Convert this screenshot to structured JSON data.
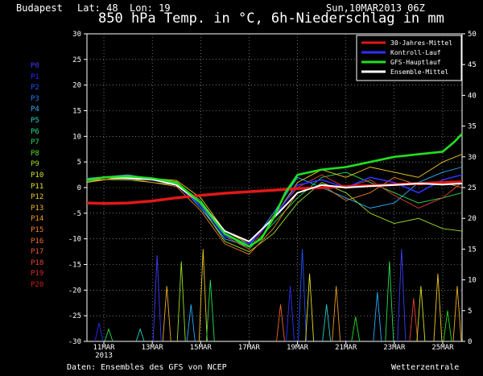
{
  "header": {
    "location": "Budapest",
    "latlon": "Lat: 48  Lon: 19",
    "title": "850 hPa Temp. in °C, 6h-Niederschlag in mm",
    "run": "Sun,10MAR2013 06Z"
  },
  "footer": {
    "source": "Daten: Ensembles des GFS von NCEP",
    "brand": "Wetterzentrale"
  },
  "members": [
    {
      "label": "P0",
      "color": "#3c3cff"
    },
    {
      "label": "P1",
      "color": "#2a2aff"
    },
    {
      "label": "P2",
      "color": "#2050ff"
    },
    {
      "label": "P3",
      "color": "#1e7dff"
    },
    {
      "label": "P4",
      "color": "#26b0ff"
    },
    {
      "label": "P5",
      "color": "#21d0c8"
    },
    {
      "label": "P6",
      "color": "#22e08c"
    },
    {
      "label": "P7",
      "color": "#24e050"
    },
    {
      "label": "P8",
      "color": "#5ae024"
    },
    {
      "label": "P9",
      "color": "#9ae024"
    },
    {
      "label": "P10",
      "color": "#d2e024"
    },
    {
      "label": "P11",
      "color": "#e6e020"
    },
    {
      "label": "P12",
      "color": "#f0c820"
    },
    {
      "label": "P13",
      "color": "#f0b020"
    },
    {
      "label": "P14",
      "color": "#f09a22"
    },
    {
      "label": "P15",
      "color": "#f08224"
    },
    {
      "label": "P16",
      "color": "#f06a28"
    },
    {
      "label": "P17",
      "color": "#ec5830"
    },
    {
      "label": "P18",
      "color": "#e84038"
    },
    {
      "label": "P19",
      "color": "#e02828"
    },
    {
      "label": "P20",
      "color": "#d01c1c"
    }
  ],
  "chart_data": {
    "type": "line",
    "title": "850 hPa Temp. in °C, 6h-Niederschlag in mm",
    "x_ticks": [
      {
        "day": 1,
        "label": "11MAR",
        "sub": "2013"
      },
      {
        "day": 3,
        "label": "13MAR"
      },
      {
        "day": 5,
        "label": "15MAR"
      },
      {
        "day": 7,
        "label": "17MAR"
      },
      {
        "day": 9,
        "label": "19MAR"
      },
      {
        "day": 11,
        "label": "21MAR"
      },
      {
        "day": 13,
        "label": "23MAR"
      },
      {
        "day": 15,
        "label": "25MAR"
      }
    ],
    "x_range": [
      0.3,
      15.8
    ],
    "y_left": {
      "label": "°C",
      "range": [
        -30,
        30
      ],
      "ticks": [
        30,
        25,
        20,
        15,
        10,
        5,
        0,
        -5,
        -10,
        -15,
        -20,
        -25,
        -30
      ]
    },
    "y_right": {
      "label": "mm",
      "range": [
        0,
        50
      ],
      "ticks": [
        50,
        45,
        40,
        35,
        30,
        25,
        20,
        15,
        10,
        5,
        0
      ]
    },
    "legend": [
      {
        "name": "30-Jahres-Mittel",
        "color": "#e01818"
      },
      {
        "name": "Kontroll-Lauf",
        "color": "#3030ff"
      },
      {
        "name": "GFS-Hauptlauf",
        "color": "#20e020"
      },
      {
        "name": "Ensemble-Mittel",
        "color": "#ffffff"
      }
    ],
    "series": [
      {
        "name": "30-Jahres-Mittel",
        "color": "#e01818",
        "x": [
          0.3,
          1,
          2,
          3,
          4,
          5,
          6,
          7,
          8,
          9,
          10,
          11,
          12,
          13,
          14,
          15,
          15.8
        ],
        "y": [
          -3.0,
          -3.1,
          -3.0,
          -2.6,
          -2.0,
          -1.5,
          -1.1,
          -0.8,
          -0.5,
          -0.2,
          0.0,
          0.2,
          0.4,
          0.6,
          0.8,
          1.0,
          1.1
        ]
      },
      {
        "name": "GFS-Hauptlauf",
        "color": "#20e020",
        "x": [
          0.3,
          1,
          2,
          3,
          4,
          5,
          6,
          7,
          7.5,
          8,
          8.5,
          9,
          10,
          11,
          12,
          13,
          14,
          15,
          15.5,
          15.8
        ],
        "y": [
          1.5,
          2.0,
          2.2,
          1.8,
          1.0,
          -3.0,
          -9.0,
          -11.5,
          -10.0,
          -6.0,
          -1.0,
          2.5,
          3.5,
          4.0,
          5.0,
          6.0,
          6.5,
          7.0,
          9.0,
          10.5
        ]
      },
      {
        "name": "Kontroll-Lauf",
        "color": "#3030ff",
        "x": [
          0.3,
          1,
          2,
          3,
          4,
          5,
          6,
          7,
          8,
          9,
          10,
          11,
          12,
          13,
          14,
          15,
          15.8
        ],
        "y": [
          1.6,
          2.0,
          1.8,
          1.5,
          0.5,
          -3.5,
          -9.5,
          -11.0,
          -6.0,
          0.5,
          1.5,
          0.0,
          2.0,
          1.0,
          -1.0,
          1.5,
          2.5
        ]
      },
      {
        "name": "Ensemble-Mittel",
        "color": "#ffffff",
        "x": [
          0.3,
          1,
          2,
          3,
          4,
          5,
          6,
          7,
          8,
          9,
          10,
          11,
          12,
          13,
          14,
          15,
          15.8
        ],
        "y": [
          1.5,
          2.0,
          1.8,
          1.6,
          0.5,
          -3.0,
          -8.5,
          -10.5,
          -6.0,
          -1.0,
          0.5,
          0.0,
          0.3,
          0.5,
          0.8,
          0.6,
          0.8
        ]
      },
      {
        "name": "P4",
        "color": "#26b0ff",
        "x": [
          0.3,
          2,
          4,
          5,
          6,
          7,
          8,
          9,
          10,
          11,
          12,
          13,
          14,
          15,
          15.8
        ],
        "y": [
          1.8,
          2.5,
          1.0,
          -4.0,
          -10.0,
          -11.5,
          -5.0,
          2.0,
          0.0,
          -2.0,
          -4.0,
          -3.0,
          1.0,
          3.0,
          4.0
        ]
      },
      {
        "name": "P7",
        "color": "#24e050",
        "x": [
          0.3,
          2,
          4,
          5,
          6,
          7,
          8,
          9,
          10,
          11,
          12,
          13,
          14,
          15,
          15.8
        ],
        "y": [
          1.2,
          2.0,
          0.8,
          -2.5,
          -9.0,
          -12.0,
          -7.0,
          -2.0,
          2.0,
          3.0,
          1.0,
          -1.0,
          -3.0,
          -2.0,
          -1.0
        ]
      },
      {
        "name": "P9",
        "color": "#9ae024",
        "x": [
          0.3,
          2,
          4,
          5,
          6,
          7,
          8,
          9,
          10,
          11,
          12,
          13,
          14,
          15,
          15.8
        ],
        "y": [
          1.6,
          1.5,
          0.5,
          -3.5,
          -10.5,
          -12.5,
          -9.0,
          -3.0,
          1.0,
          -1.0,
          -5.0,
          -7.0,
          -6.0,
          -8.0,
          -8.5
        ]
      },
      {
        "name": "P12",
        "color": "#f0c820",
        "x": [
          0.3,
          2,
          4,
          5,
          6,
          7,
          8,
          9,
          10,
          11,
          12,
          13,
          14,
          15,
          15.8
        ],
        "y": [
          1.0,
          2.2,
          1.4,
          -2.0,
          -8.5,
          -11.0,
          -6.0,
          1.0,
          3.5,
          2.0,
          4.0,
          3.0,
          2.0,
          5.0,
          6.5
        ]
      },
      {
        "name": "P15",
        "color": "#f08224",
        "x": [
          0.3,
          2,
          4,
          5,
          6,
          7,
          8,
          9,
          10,
          11,
          12,
          13,
          14,
          15,
          15.8
        ],
        "y": [
          1.4,
          1.8,
          0.2,
          -4.5,
          -11.0,
          -13.0,
          -8.0,
          -1.0,
          0.5,
          -2.5,
          -1.0,
          2.0,
          0.5,
          1.0,
          0.0
        ]
      },
      {
        "name": "P18",
        "color": "#e84038",
        "x": [
          0.3,
          2,
          4,
          5,
          6,
          7,
          8,
          9,
          10,
          11,
          12,
          13,
          14,
          15,
          15.8
        ],
        "y": [
          1.7,
          2.4,
          1.2,
          -3.0,
          -9.5,
          -12.0,
          -5.5,
          0.0,
          2.5,
          0.0,
          1.5,
          -1.5,
          -4.0,
          -2.0,
          1.0
        ]
      }
    ],
    "precip": {
      "x": [
        0.8,
        1.2,
        2.5,
        3.2,
        3.6,
        4.2,
        4.6,
        5.1,
        5.4,
        8.3,
        8.7,
        9.2,
        9.5,
        10.2,
        10.6,
        11.4,
        12.3,
        12.8,
        13.3,
        13.8,
        14.1,
        14.8,
        15.2,
        15.6
      ],
      "y": [
        3,
        2,
        2,
        14,
        9,
        13,
        6,
        15,
        10,
        6,
        9,
        15,
        11,
        6,
        9,
        4,
        8,
        13,
        15,
        7,
        9,
        11,
        5,
        9
      ],
      "colors": [
        "#2a2aff",
        "#24e050",
        "#21d0c8",
        "#3c3cff",
        "#f0b020",
        "#9ae024",
        "#26b0ff",
        "#f0c820",
        "#24e050",
        "#f06a28",
        "#3030ff",
        "#2050ff",
        "#e6e020",
        "#21d0c8",
        "#f09a22",
        "#20e020",
        "#26b0ff",
        "#24e050",
        "#3c3cff",
        "#e84038",
        "#d2e024",
        "#f0c820",
        "#20e020",
        "#f0b020"
      ]
    }
  }
}
